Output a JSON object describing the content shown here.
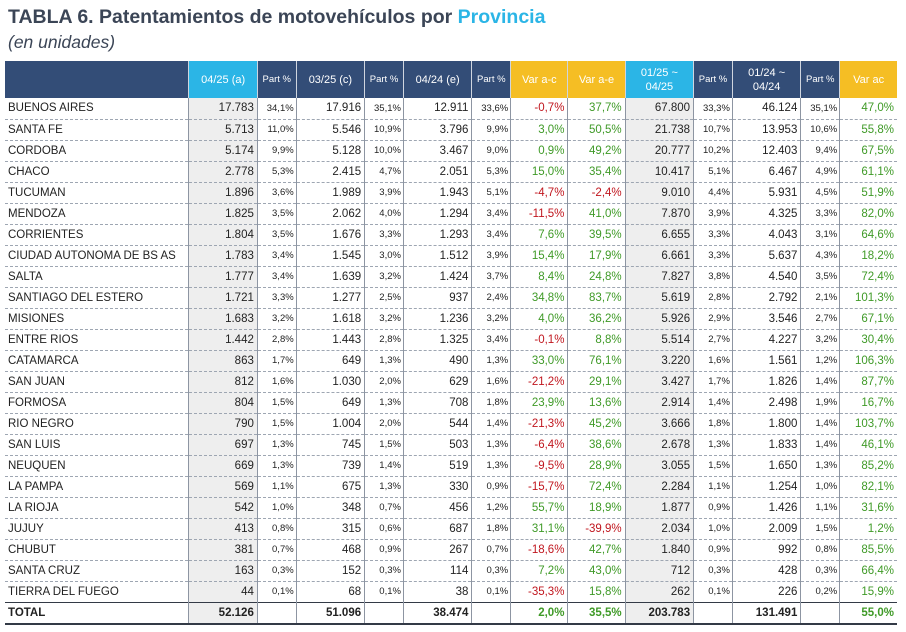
{
  "title": {
    "main": "TABLA 6. Patentamientos de motovehículos por ",
    "highlight": "Provincia",
    "subtitle": "(en unidades)"
  },
  "colors": {
    "header_bg": "#334d77",
    "blue_header": "#2bb5e6",
    "yellow_header": "#f5be24",
    "negative": "#c0161e",
    "positive": "#3f9a27"
  },
  "header": [
    "",
    "04/25 (a)",
    "Part %",
    "03/25 (c)",
    "Part %",
    "04/24 (e)",
    "Part %",
    "Var a-c",
    "Var a-e",
    "01/25 ~ 04/25",
    "Part %",
    "01/24 ~ 04/24",
    "Part %",
    "Var ac"
  ],
  "rows": [
    [
      "BUENOS AIRES",
      "17.783",
      "34,1%",
      "17.916",
      "35,1%",
      "12.911",
      "33,6%",
      "-0,7%",
      "37,7%",
      "67.800",
      "33,3%",
      "46.124",
      "35,1%",
      "47,0%"
    ],
    [
      "SANTA FE",
      "5.713",
      "11,0%",
      "5.546",
      "10,9%",
      "3.796",
      "9,9%",
      "3,0%",
      "50,5%",
      "21.738",
      "10,7%",
      "13.953",
      "10,6%",
      "55,8%"
    ],
    [
      "CORDOBA",
      "5.174",
      "9,9%",
      "5.128",
      "10,0%",
      "3.467",
      "9,0%",
      "0,9%",
      "49,2%",
      "20.777",
      "10,2%",
      "12.403",
      "9,4%",
      "67,5%"
    ],
    [
      "CHACO",
      "2.778",
      "5,3%",
      "2.415",
      "4,7%",
      "2.051",
      "5,3%",
      "15,0%",
      "35,4%",
      "10.417",
      "5,1%",
      "6.467",
      "4,9%",
      "61,1%"
    ],
    [
      "TUCUMAN",
      "1.896",
      "3,6%",
      "1.989",
      "3,9%",
      "1.943",
      "5,1%",
      "-4,7%",
      "-2,4%",
      "9.010",
      "4,4%",
      "5.931",
      "4,5%",
      "51,9%"
    ],
    [
      "MENDOZA",
      "1.825",
      "3,5%",
      "2.062",
      "4,0%",
      "1.294",
      "3,4%",
      "-11,5%",
      "41,0%",
      "7.870",
      "3,9%",
      "4.325",
      "3,3%",
      "82,0%"
    ],
    [
      "CORRIENTES",
      "1.804",
      "3,5%",
      "1.676",
      "3,3%",
      "1.293",
      "3,4%",
      "7,6%",
      "39,5%",
      "6.655",
      "3,3%",
      "4.043",
      "3,1%",
      "64,6%"
    ],
    [
      "CIUDAD AUTONOMA DE BS AS",
      "1.783",
      "3,4%",
      "1.545",
      "3,0%",
      "1.512",
      "3,9%",
      "15,4%",
      "17,9%",
      "6.661",
      "3,3%",
      "5.637",
      "4,3%",
      "18,2%"
    ],
    [
      "SALTA",
      "1.777",
      "3,4%",
      "1.639",
      "3,2%",
      "1.424",
      "3,7%",
      "8,4%",
      "24,8%",
      "7.827",
      "3,8%",
      "4.540",
      "3,5%",
      "72,4%"
    ],
    [
      "SANTIAGO DEL ESTERO",
      "1.721",
      "3,3%",
      "1.277",
      "2,5%",
      "937",
      "2,4%",
      "34,8%",
      "83,7%",
      "5.619",
      "2,8%",
      "2.792",
      "2,1%",
      "101,3%"
    ],
    [
      "MISIONES",
      "1.683",
      "3,2%",
      "1.618",
      "3,2%",
      "1.236",
      "3,2%",
      "4,0%",
      "36,2%",
      "5.926",
      "2,9%",
      "3.546",
      "2,7%",
      "67,1%"
    ],
    [
      "ENTRE RIOS",
      "1.442",
      "2,8%",
      "1.443",
      "2,8%",
      "1.325",
      "3,4%",
      "-0,1%",
      "8,8%",
      "5.514",
      "2,7%",
      "4.227",
      "3,2%",
      "30,4%"
    ],
    [
      "CATAMARCA",
      "863",
      "1,7%",
      "649",
      "1,3%",
      "490",
      "1,3%",
      "33,0%",
      "76,1%",
      "3.220",
      "1,6%",
      "1.561",
      "1,2%",
      "106,3%"
    ],
    [
      "SAN JUAN",
      "812",
      "1,6%",
      "1.030",
      "2,0%",
      "629",
      "1,6%",
      "-21,2%",
      "29,1%",
      "3.427",
      "1,7%",
      "1.826",
      "1,4%",
      "87,7%"
    ],
    [
      "FORMOSA",
      "804",
      "1,5%",
      "649",
      "1,3%",
      "708",
      "1,8%",
      "23,9%",
      "13,6%",
      "2.914",
      "1,4%",
      "2.498",
      "1,9%",
      "16,7%"
    ],
    [
      "RIO NEGRO",
      "790",
      "1,5%",
      "1.004",
      "2,0%",
      "544",
      "1,4%",
      "-21,3%",
      "45,2%",
      "3.666",
      "1,8%",
      "1.800",
      "1,4%",
      "103,7%"
    ],
    [
      "SAN LUIS",
      "697",
      "1,3%",
      "745",
      "1,5%",
      "503",
      "1,3%",
      "-6,4%",
      "38,6%",
      "2.678",
      "1,3%",
      "1.833",
      "1,4%",
      "46,1%"
    ],
    [
      "NEUQUEN",
      "669",
      "1,3%",
      "739",
      "1,4%",
      "519",
      "1,3%",
      "-9,5%",
      "28,9%",
      "3.055",
      "1,5%",
      "1.650",
      "1,3%",
      "85,2%"
    ],
    [
      "LA PAMPA",
      "569",
      "1,1%",
      "675",
      "1,3%",
      "330",
      "0,9%",
      "-15,7%",
      "72,4%",
      "2.284",
      "1,1%",
      "1.254",
      "1,0%",
      "82,1%"
    ],
    [
      "LA RIOJA",
      "542",
      "1,0%",
      "348",
      "0,7%",
      "456",
      "1,2%",
      "55,7%",
      "18,9%",
      "1.877",
      "0,9%",
      "1.426",
      "1,1%",
      "31,6%"
    ],
    [
      "JUJUY",
      "413",
      "0,8%",
      "315",
      "0,6%",
      "687",
      "1,8%",
      "31,1%",
      "-39,9%",
      "2.034",
      "1,0%",
      "2.009",
      "1,5%",
      "1,2%"
    ],
    [
      "CHUBUT",
      "381",
      "0,7%",
      "468",
      "0,9%",
      "267",
      "0,7%",
      "-18,6%",
      "42,7%",
      "1.840",
      "0,9%",
      "992",
      "0,8%",
      "85,5%"
    ],
    [
      "SANTA CRUZ",
      "163",
      "0,3%",
      "152",
      "0,3%",
      "114",
      "0,3%",
      "7,2%",
      "43,0%",
      "712",
      "0,3%",
      "428",
      "0,3%",
      "66,4%"
    ],
    [
      "TIERRA DEL FUEGO",
      "44",
      "0,1%",
      "68",
      "0,1%",
      "38",
      "0,1%",
      "-35,3%",
      "15,8%",
      "262",
      "0,1%",
      "226",
      "0,2%",
      "15,9%"
    ]
  ],
  "total": [
    "TOTAL",
    "52.126",
    "",
    "51.096",
    "",
    "38.474",
    "",
    "2,0%",
    "35,5%",
    "203.783",
    "",
    "131.491",
    "",
    "55,0%"
  ]
}
